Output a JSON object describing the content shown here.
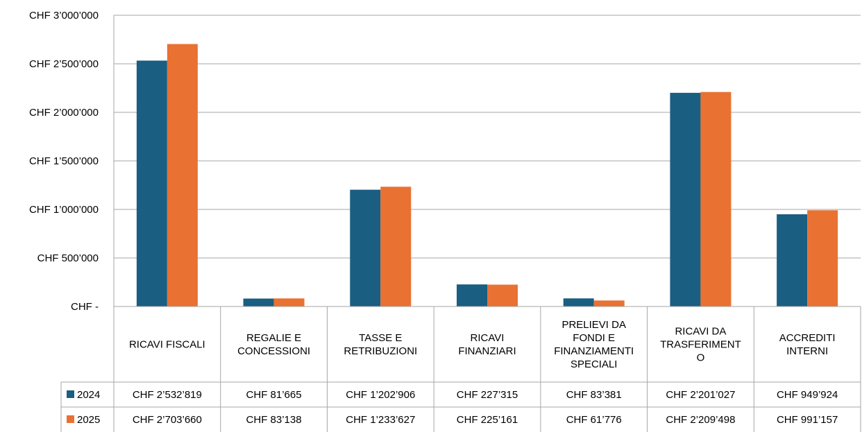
{
  "chart_data": {
    "type": "bar",
    "categories": [
      [
        "RICAVI FISCALI"
      ],
      [
        "REGALIE E",
        "CONCESSIONI"
      ],
      [
        "TASSE E",
        "RETRIBUZIONI"
      ],
      [
        "RICAVI",
        "FINANZIARI"
      ],
      [
        "PRELIEVI DA",
        "FONDI E",
        "FINANZIAMENTI",
        "SPECIALI"
      ],
      [
        "RICAVI DA",
        "TRASFERIMENT",
        "O"
      ],
      [
        "ACCREDITI",
        "INTERNI"
      ]
    ],
    "series": [
      {
        "name": "2024",
        "color": "#1a5e82",
        "values": [
          2532819,
          81665,
          1202906,
          227315,
          83381,
          2201027,
          949924
        ],
        "labels": [
          "CHF 2’532’819",
          "CHF 81’665",
          "CHF 1’202’906",
          "CHF 227’315",
          "CHF 83’381",
          "CHF 2’201’027",
          "CHF 949’924"
        ]
      },
      {
        "name": "2025",
        "color": "#e97132",
        "values": [
          2703660,
          83138,
          1233627,
          225161,
          61776,
          2209498,
          991157
        ],
        "labels": [
          "CHF 2’703’660",
          "CHF 83’138",
          "CHF 1’233’627",
          "CHF 225’161",
          "CHF 61’776",
          "CHF 2’209’498",
          "CHF 991’157"
        ]
      }
    ],
    "ylim": [
      0,
      3000000
    ],
    "yticks": [
      0,
      500000,
      1000000,
      1500000,
      2000000,
      2500000,
      3000000
    ],
    "ytick_labels": [
      "CHF -",
      "CHF 500’000",
      "CHF 1’000’000",
      "CHF 1’500’000",
      "CHF 2’000’000",
      "CHF 2’500’000",
      "CHF 3’000’000"
    ],
    "grid": true,
    "legend": "data-table",
    "title": "",
    "xlabel": "",
    "ylabel": ""
  }
}
